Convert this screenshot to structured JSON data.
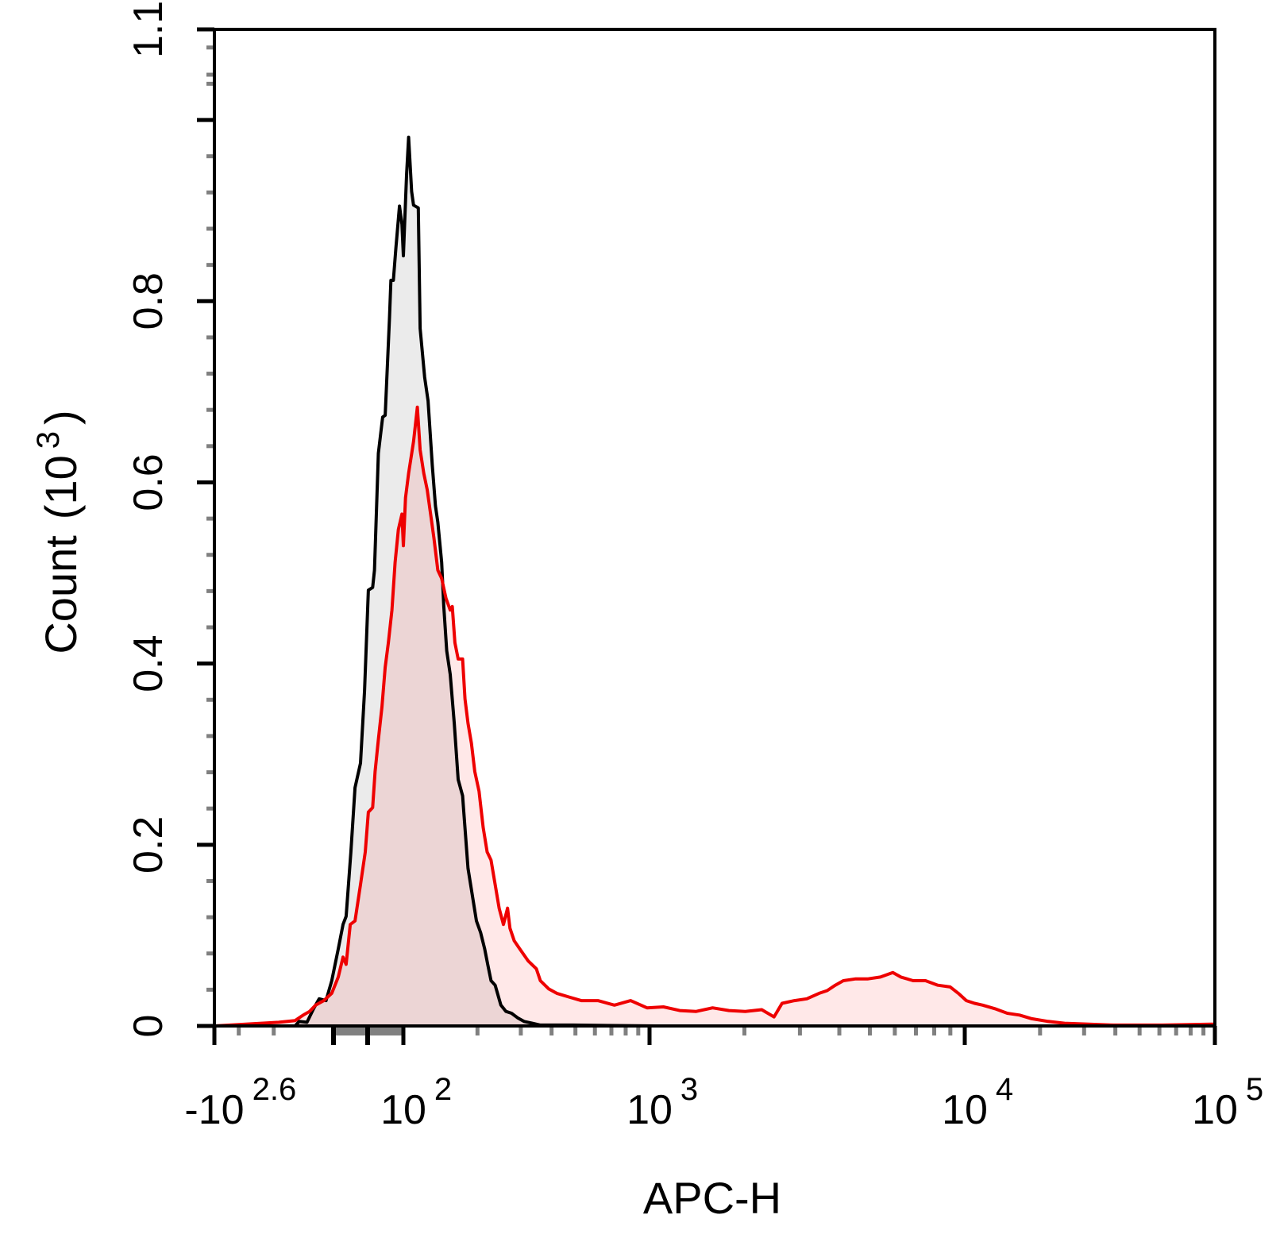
{
  "chart_data": {
    "type": "area",
    "title": "",
    "xlabel": "APC-H",
    "ylabel": {
      "text": "Count",
      "unit_open": "(10",
      "unit_exp": "3",
      "unit_close": ")"
    },
    "x_scale": "biexponential",
    "xlim": [
      -398,
      100000
    ],
    "ylim": [
      0,
      1.1
    ],
    "grid": false,
    "legend": "none",
    "x_ticks": [
      {
        "value": -398,
        "base": "-10",
        "exp": "2.6"
      },
      {
        "value": 100,
        "base": "10",
        "exp": "2"
      },
      {
        "value": 1000,
        "base": "10",
        "exp": "3"
      },
      {
        "value": 10000,
        "base": "10",
        "exp": "4"
      },
      {
        "value": 100000,
        "base": "10",
        "exp": "5"
      }
    ],
    "x_unlabeled_major_ticks": [
      -100,
      0
    ],
    "y_ticks": [
      {
        "value": 0,
        "label": "0"
      },
      {
        "value": 0.2,
        "label": "0.2"
      },
      {
        "value": 0.4,
        "label": "0.4"
      },
      {
        "value": 0.6,
        "label": "0.6"
      },
      {
        "value": 0.8,
        "label": "0.8"
      },
      {
        "value": 1.0,
        "label": ""
      },
      {
        "value": 1.1,
        "label": "1.1"
      }
    ],
    "series": [
      {
        "color": "#000000",
        "fill": "#ebebeb",
        "x": [
          -398,
          -156,
          -149,
          -136,
          -126,
          -118,
          -109,
          -102,
          -86,
          -72,
          -63,
          -49,
          -37,
          -21,
          -9,
          2,
          14,
          19,
          30,
          42,
          49,
          61,
          65,
          72,
          79,
          89,
          96,
          100,
          103,
          105,
          108,
          110,
          115,
          117,
          122,
          126,
          131,
          135,
          138,
          143,
          146,
          150,
          155,
          161,
          167,
          174,
          176,
          183,
          192,
          198,
          206,
          214,
          220,
          227,
          236,
          249,
          261,
          275,
          291,
          309,
          334,
          360,
          490,
          1043,
          100000
        ],
        "y": [
          0,
          0,
          0.005,
          0.004,
          0.019,
          0.03,
          0.028,
          0.05,
          0.085,
          0.112,
          0.121,
          0.192,
          0.263,
          0.29,
          0.37,
          0.481,
          0.484,
          0.503,
          0.632,
          0.672,
          0.674,
          0.779,
          0.823,
          0.823,
          0.859,
          0.905,
          0.885,
          0.85,
          0.939,
          0.981,
          0.921,
          0.906,
          0.903,
          0.77,
          0.716,
          0.69,
          0.619,
          0.574,
          0.556,
          0.512,
          0.463,
          0.414,
          0.388,
          0.334,
          0.272,
          0.254,
          0.236,
          0.174,
          0.139,
          0.116,
          0.103,
          0.085,
          0.068,
          0.05,
          0.045,
          0.023,
          0.016,
          0.014,
          0.009,
          0.005,
          0.003,
          0.001,
          0.001,
          0,
          0
        ]
      },
      {
        "color": "#ee0000",
        "fill": "#ff0000",
        "x": [
          -398,
          -277,
          -189,
          -156,
          -142,
          -132,
          -123,
          -112,
          -102,
          -86,
          -72,
          -63,
          -51,
          -37,
          -21,
          -7,
          2,
          14,
          21,
          30,
          40,
          49,
          58,
          68,
          77,
          86,
          96,
          100,
          102,
          105,
          110,
          114,
          117,
          121,
          125,
          129,
          133,
          138,
          143,
          149,
          155,
          158,
          162,
          167,
          174,
          178,
          183,
          189,
          195,
          203,
          211,
          219,
          227,
          236,
          245,
          255,
          265,
          271,
          282,
          297,
          321,
          347,
          360,
          389,
          420,
          470,
          528,
          617,
          720,
          838,
          977,
          1107,
          1247,
          1406,
          1585,
          1787,
          2013,
          2270,
          2483,
          2633,
          2882,
          3155,
          3452,
          3661,
          3884,
          4120,
          4509,
          4933,
          5400,
          5912,
          6270,
          6861,
          7510,
          8217,
          8995,
          9540,
          10150,
          10940,
          11800,
          13200,
          14790,
          16560,
          18530,
          21550,
          25060,
          31380,
          39300,
          61700,
          100000
        ],
        "y": [
          0,
          0.002,
          0.004,
          0.006,
          0.012,
          0.016,
          0.023,
          0.028,
          0.036,
          0.054,
          0.076,
          0.068,
          0.112,
          0.116,
          0.156,
          0.192,
          0.236,
          0.241,
          0.281,
          0.316,
          0.352,
          0.396,
          0.423,
          0.459,
          0.512,
          0.548,
          0.565,
          0.53,
          0.583,
          0.61,
          0.645,
          0.683,
          0.636,
          0.61,
          0.592,
          0.565,
          0.539,
          0.503,
          0.494,
          0.472,
          0.459,
          0.463,
          0.423,
          0.405,
          0.405,
          0.361,
          0.334,
          0.312,
          0.281,
          0.259,
          0.219,
          0.192,
          0.183,
          0.156,
          0.13,
          0.112,
          0.13,
          0.108,
          0.094,
          0.085,
          0.072,
          0.063,
          0.05,
          0.041,
          0.036,
          0.032,
          0.028,
          0.028,
          0.023,
          0.028,
          0.02,
          0.021,
          0.017,
          0.016,
          0.02,
          0.017,
          0.016,
          0.018,
          0.01,
          0.025,
          0.028,
          0.03,
          0.036,
          0.039,
          0.045,
          0.05,
          0.052,
          0.052,
          0.054,
          0.059,
          0.054,
          0.05,
          0.05,
          0.045,
          0.043,
          0.036,
          0.028,
          0.025,
          0.023,
          0.019,
          0.014,
          0.012,
          0.008,
          0.005,
          0.003,
          0.002,
          0.001,
          0.001,
          0.002
        ]
      }
    ]
  }
}
